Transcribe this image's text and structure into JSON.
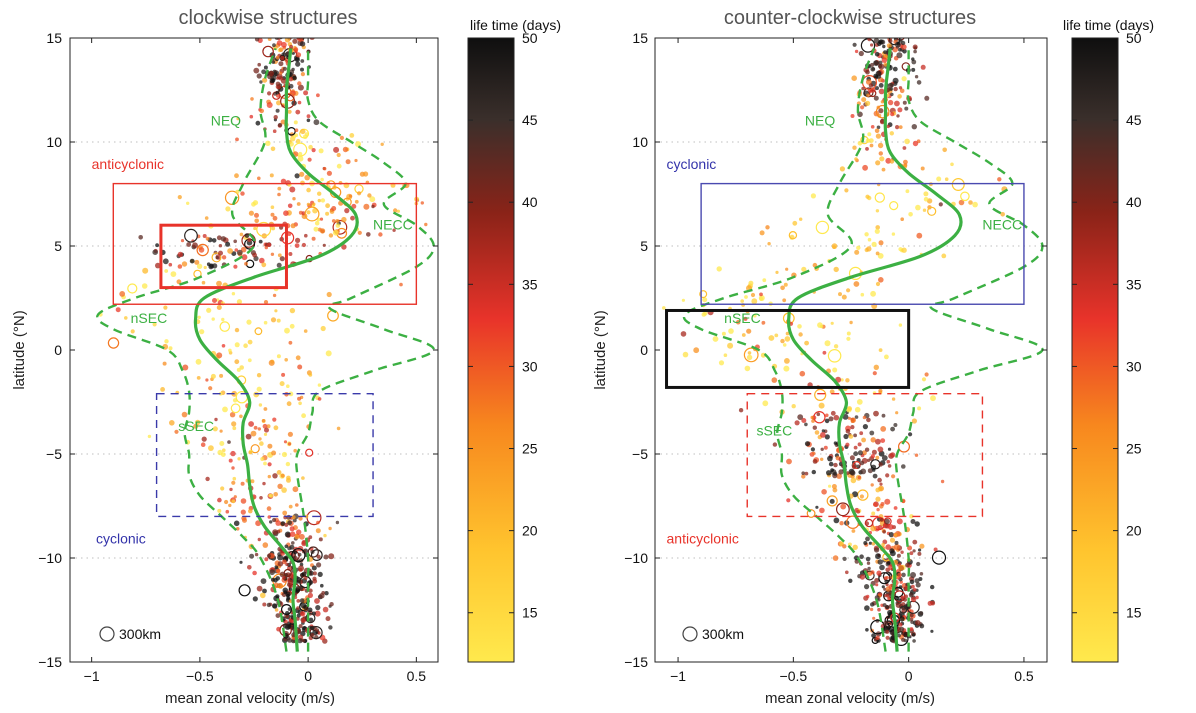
{
  "chart_data": [
    {
      "type": "scatter",
      "title": "clockwise structures",
      "xlabel": "mean zonal velocity (m/s)",
      "ylabel": "latitude (°N)",
      "xlim": [
        -1.1,
        0.6
      ],
      "ylim": [
        -15,
        15
      ],
      "xticks": [
        "−1",
        "−0.5",
        "0",
        "0.5"
      ],
      "xtick_values": [
        -1,
        -0.5,
        0,
        0.5
      ],
      "yticks": [
        "−15",
        "−10",
        "−5",
        "0",
        "5",
        "10",
        "15"
      ],
      "ytick_values": [
        -15,
        -10,
        -5,
        0,
        5,
        10,
        15
      ],
      "colorbar": {
        "label": "life time (days)",
        "range": [
          12,
          50
        ],
        "ticks": [
          "15",
          "20",
          "25",
          "30",
          "35",
          "40",
          "45",
          "50"
        ],
        "tick_values": [
          15,
          20,
          25,
          30,
          35,
          40,
          45,
          50
        ]
      },
      "grid": "dotted horizontal at ±5, ±10",
      "mean_velocity": {
        "lat": [
          -14.5,
          -13,
          -12,
          -11,
          -10.2,
          -9.5,
          -8.5,
          -7.5,
          -6.5,
          -5.5,
          -4.5,
          -3.5,
          -2.5,
          -1.5,
          -0.5,
          0.5,
          1.5,
          2.5,
          3.5,
          4.5,
          5.5,
          6.5,
          7.5,
          8.5,
          9.5,
          10.5,
          11.5,
          12.5,
          13.5,
          14.5
        ],
        "u": [
          -0.05,
          -0.06,
          -0.07,
          -0.06,
          -0.07,
          -0.12,
          -0.2,
          -0.25,
          -0.27,
          -0.28,
          -0.3,
          -0.3,
          -0.27,
          -0.32,
          -0.42,
          -0.5,
          -0.52,
          -0.48,
          -0.25,
          0.05,
          0.2,
          0.22,
          0.12,
          0.0,
          -0.08,
          -0.1,
          -0.1,
          -0.1,
          -0.09,
          -0.08
        ]
      },
      "envelope_left": {
        "lat": [
          -14.5,
          -12,
          -10,
          -9,
          -8,
          -7,
          -6,
          -5,
          -4,
          -3,
          -2,
          -1,
          0,
          1,
          1.7,
          2.5,
          3.5,
          5,
          6.5,
          8,
          10,
          11.5,
          13,
          14.5
        ],
        "u": [
          -0.1,
          -0.14,
          -0.22,
          -0.3,
          -0.4,
          -0.5,
          -0.55,
          -0.55,
          -0.57,
          -0.55,
          -0.55,
          -0.58,
          -0.65,
          -0.9,
          -0.97,
          -0.8,
          -0.5,
          -0.25,
          -0.35,
          -0.3,
          -0.2,
          -0.22,
          -0.2,
          -0.15
        ]
      },
      "envelope_right": {
        "lat": [
          -14.5,
          -13,
          -12,
          -11,
          -10,
          -8,
          -6,
          -5,
          -4,
          -3,
          -2,
          -1,
          0,
          1,
          2,
          2.5,
          4,
          5,
          6,
          7,
          8,
          9,
          10,
          11,
          12,
          13,
          14.5
        ],
        "u": [
          0.0,
          0.0,
          0.0,
          0.0,
          0.0,
          -0.02,
          -0.05,
          -0.05,
          0.0,
          0.02,
          0.05,
          0.3,
          0.58,
          0.35,
          0.1,
          0.2,
          0.5,
          0.58,
          0.5,
          0.35,
          0.45,
          0.35,
          0.2,
          0.05,
          0.0,
          0.0,
          0.0
        ]
      },
      "annotations": [
        {
          "text": "NEQ",
          "x": -0.45,
          "y": 10.8,
          "color": "#3cb043"
        },
        {
          "text": "NECC",
          "x": 0.3,
          "y": 5.8,
          "color": "#3cb043"
        },
        {
          "text": "nSEC",
          "x": -0.82,
          "y": 1.3,
          "color": "#3cb043"
        },
        {
          "text": "sSEC",
          "x": -0.6,
          "y": -3.9,
          "color": "#3cb043"
        },
        {
          "text": "anticyclonic",
          "x": -1.0,
          "y": 8.7,
          "color": "#e8332a"
        },
        {
          "text": "cyclonic",
          "x": -0.98,
          "y": -9.3,
          "color": "#3333aa"
        }
      ],
      "boxes": [
        {
          "x": [
            -0.9,
            0.5
          ],
          "y": [
            2.2,
            8.0
          ],
          "color": "#e8332a",
          "style": "solid",
          "weight": "thin"
        },
        {
          "x": [
            -0.68,
            -0.1
          ],
          "y": [
            3.0,
            6.0
          ],
          "color": "#e8332a",
          "style": "solid",
          "weight": "thick"
        },
        {
          "x": [
            -0.7,
            0.3
          ],
          "y": [
            -8.0,
            -2.1
          ],
          "color": "#3a3aaa",
          "style": "dashed",
          "weight": "thin"
        }
      ],
      "legend": {
        "text": "300km"
      },
      "density_profile": [
        {
          "lat": -14,
          "center": -0.05,
          "spread": 0.06,
          "count": 90,
          "life": 44
        },
        {
          "lat": -12.5,
          "center": -0.06,
          "spread": 0.07,
          "count": 95,
          "life": 44
        },
        {
          "lat": -11,
          "center": -0.07,
          "spread": 0.08,
          "count": 95,
          "life": 42
        },
        {
          "lat": -9.5,
          "center": -0.12,
          "spread": 0.1,
          "count": 60,
          "life": 34
        },
        {
          "lat": -8,
          "center": -0.22,
          "spread": 0.14,
          "count": 45,
          "life": 24
        },
        {
          "lat": -6,
          "center": -0.26,
          "spread": 0.16,
          "count": 40,
          "life": 22
        },
        {
          "lat": -4,
          "center": -0.28,
          "spread": 0.18,
          "count": 45,
          "life": 22
        },
        {
          "lat": -2,
          "center": -0.35,
          "spread": 0.22,
          "count": 35,
          "life": 18
        },
        {
          "lat": 0,
          "center": -0.4,
          "spread": 0.25,
          "count": 30,
          "life": 17
        },
        {
          "lat": 1.8,
          "center": -0.45,
          "spread": 0.25,
          "count": 30,
          "life": 18
        },
        {
          "lat": 4,
          "center": -0.32,
          "spread": 0.22,
          "count": 95,
          "life": 38
        },
        {
          "lat": 5.5,
          "center": 0.05,
          "spread": 0.22,
          "count": 70,
          "life": 26
        },
        {
          "lat": 7,
          "center": 0.05,
          "spread": 0.25,
          "count": 60,
          "life": 22
        },
        {
          "lat": 8.5,
          "center": -0.05,
          "spread": 0.15,
          "count": 35,
          "life": 22
        },
        {
          "lat": 10.5,
          "center": -0.12,
          "spread": 0.08,
          "count": 45,
          "life": 34
        },
        {
          "lat": 12.5,
          "center": -0.12,
          "spread": 0.05,
          "count": 80,
          "life": 44
        },
        {
          "lat": 14.3,
          "center": -0.1,
          "spread": 0.07,
          "count": 70,
          "life": 36
        }
      ]
    },
    {
      "type": "scatter",
      "title": "counter-clockwise structures",
      "xlabel": "mean zonal velocity (m/s)",
      "ylabel": "latitude (°N)",
      "xlim": [
        -1.1,
        0.6
      ],
      "ylim": [
        -15,
        15
      ],
      "xticks": [
        "−1",
        "−0.5",
        "0",
        "0.5"
      ],
      "xtick_values": [
        -1,
        -0.5,
        0,
        0.5
      ],
      "yticks": [
        "−15",
        "−10",
        "−5",
        "0",
        "5",
        "10",
        "15"
      ],
      "ytick_values": [
        -15,
        -10,
        -5,
        0,
        5,
        10,
        15
      ],
      "colorbar": {
        "label": "life time (days)",
        "range": [
          12,
          50
        ],
        "ticks": [
          "15",
          "20",
          "25",
          "30",
          "35",
          "40",
          "45",
          "50"
        ],
        "tick_values": [
          15,
          20,
          25,
          30,
          35,
          40,
          45,
          50
        ]
      },
      "grid": "dotted horizontal at ±5, ±10",
      "mean_velocity": {
        "lat": [
          -14.5,
          -13,
          -12,
          -11,
          -10.2,
          -9.5,
          -8.5,
          -7.5,
          -6.5,
          -5.5,
          -4.5,
          -3.5,
          -2.5,
          -1.5,
          -0.5,
          0.5,
          1.5,
          2.5,
          3.5,
          4.5,
          5.5,
          6.5,
          7.5,
          8.5,
          9.5,
          10.5,
          11.5,
          12.5,
          13.5,
          14.5
        ],
        "u": [
          -0.05,
          -0.06,
          -0.07,
          -0.06,
          -0.07,
          -0.12,
          -0.2,
          -0.25,
          -0.27,
          -0.28,
          -0.3,
          -0.3,
          -0.27,
          -0.32,
          -0.42,
          -0.5,
          -0.52,
          -0.48,
          -0.25,
          0.05,
          0.2,
          0.22,
          0.12,
          0.0,
          -0.08,
          -0.1,
          -0.1,
          -0.1,
          -0.09,
          -0.08
        ]
      },
      "envelope_left": {
        "lat": [
          -14.5,
          -12,
          -10,
          -9,
          -8,
          -7,
          -6,
          -5,
          -4,
          -3,
          -2,
          -1,
          0,
          1,
          1.7,
          2.5,
          3.5,
          5,
          6.5,
          8,
          10,
          11.5,
          13,
          14.5
        ],
        "u": [
          -0.1,
          -0.14,
          -0.22,
          -0.3,
          -0.4,
          -0.5,
          -0.55,
          -0.55,
          -0.57,
          -0.55,
          -0.55,
          -0.58,
          -0.65,
          -0.9,
          -0.97,
          -0.8,
          -0.5,
          -0.25,
          -0.35,
          -0.3,
          -0.2,
          -0.22,
          -0.2,
          -0.15
        ]
      },
      "envelope_right": {
        "lat": [
          -14.5,
          -13,
          -12,
          -11,
          -10,
          -8,
          -6,
          -5,
          -4,
          -3,
          -2,
          -1,
          0,
          1,
          2,
          2.5,
          4,
          5,
          6,
          7,
          8,
          9,
          10,
          11,
          12,
          13,
          14.5
        ],
        "u": [
          0.0,
          0.0,
          0.0,
          0.0,
          0.0,
          -0.02,
          -0.05,
          -0.05,
          0.0,
          0.02,
          0.05,
          0.3,
          0.58,
          0.35,
          0.1,
          0.2,
          0.5,
          0.58,
          0.5,
          0.35,
          0.45,
          0.35,
          0.2,
          0.05,
          0.0,
          0.0,
          0.0
        ]
      },
      "annotations": [
        {
          "text": "NEQ",
          "x": -0.45,
          "y": 10.8,
          "color": "#3cb043"
        },
        {
          "text": "NECC",
          "x": 0.32,
          "y": 5.8,
          "color": "#3cb043"
        },
        {
          "text": "nSEC",
          "x": -0.8,
          "y": 1.3,
          "color": "#3cb043"
        },
        {
          "text": "sSEC",
          "x": -0.66,
          "y": -4.1,
          "color": "#3cb043"
        },
        {
          "text": "cyclonic",
          "x": -1.05,
          "y": 8.7,
          "color": "#3333aa"
        },
        {
          "text": "anticyclonic",
          "x": -1.05,
          "y": -9.3,
          "color": "#e8332a"
        }
      ],
      "boxes": [
        {
          "x": [
            -0.9,
            0.5
          ],
          "y": [
            2.2,
            8.0
          ],
          "color": "#4a4ab0",
          "style": "solid",
          "weight": "thin"
        },
        {
          "x": [
            -1.05,
            0.0
          ],
          "y": [
            -1.8,
            1.9
          ],
          "color": "#111111",
          "style": "solid",
          "weight": "thick"
        },
        {
          "x": [
            -0.7,
            0.32
          ],
          "y": [
            -8.0,
            -2.1
          ],
          "color": "#e8332a",
          "style": "dashed",
          "weight": "thin"
        }
      ],
      "legend": {
        "text": "300km"
      },
      "density_profile": [
        {
          "lat": -14,
          "center": -0.05,
          "spread": 0.06,
          "count": 90,
          "life": 44
        },
        {
          "lat": -12.5,
          "center": -0.06,
          "spread": 0.07,
          "count": 90,
          "life": 42
        },
        {
          "lat": -11,
          "center": -0.08,
          "spread": 0.08,
          "count": 80,
          "life": 40
        },
        {
          "lat": -9.5,
          "center": -0.12,
          "spread": 0.1,
          "count": 55,
          "life": 32
        },
        {
          "lat": -8,
          "center": -0.2,
          "spread": 0.13,
          "count": 50,
          "life": 30
        },
        {
          "lat": -6,
          "center": -0.26,
          "spread": 0.13,
          "count": 85,
          "life": 42
        },
        {
          "lat": -4.5,
          "center": -0.28,
          "spread": 0.12,
          "count": 55,
          "life": 36
        },
        {
          "lat": -3,
          "center": -0.3,
          "spread": 0.18,
          "count": 30,
          "life": 22
        },
        {
          "lat": -1,
          "center": -0.55,
          "spread": 0.25,
          "count": 40,
          "life": 18
        },
        {
          "lat": 0.8,
          "center": -0.6,
          "spread": 0.22,
          "count": 35,
          "life": 18
        },
        {
          "lat": 2.5,
          "center": -0.45,
          "spread": 0.22,
          "count": 30,
          "life": 18
        },
        {
          "lat": 4.5,
          "center": -0.2,
          "spread": 0.22,
          "count": 30,
          "life": 18
        },
        {
          "lat": 6.5,
          "center": 0.05,
          "spread": 0.2,
          "count": 30,
          "life": 18
        },
        {
          "lat": 8.5,
          "center": -0.08,
          "spread": 0.12,
          "count": 35,
          "life": 22
        },
        {
          "lat": 10.5,
          "center": -0.1,
          "spread": 0.08,
          "count": 55,
          "life": 36
        },
        {
          "lat": 12.5,
          "center": -0.1,
          "spread": 0.06,
          "count": 70,
          "life": 42
        },
        {
          "lat": 14.3,
          "center": -0.08,
          "spread": 0.06,
          "count": 80,
          "life": 46
        }
      ]
    }
  ]
}
